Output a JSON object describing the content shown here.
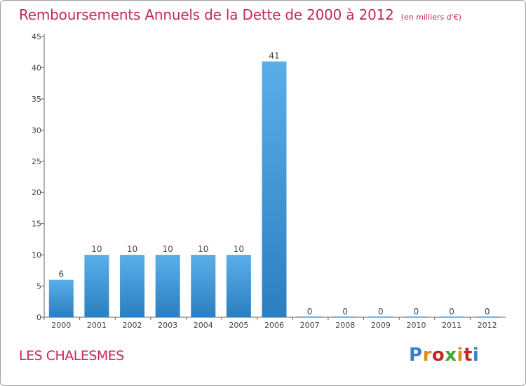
{
  "header": {
    "title": "Remboursements Annuels de la Dette de 2000 à 2012",
    "unit": "(en milliers d'€)"
  },
  "footer": {
    "commune": "LES CHALESMES",
    "brand": "Proxiti",
    "brand_colors": [
      "#3a7fc8",
      "#e08a1a",
      "#c42828",
      "#3aa83a",
      "#e08a1a",
      "#c42828",
      "#3a7fc8"
    ]
  },
  "chart_data": {
    "type": "bar",
    "title": "Remboursements Annuels de la Dette de 2000 à 2012",
    "subtitle": "(en milliers d'€)",
    "xlabel": "",
    "ylabel": "",
    "categories": [
      "2000",
      "2001",
      "2002",
      "2003",
      "2004",
      "2005",
      "2006",
      "2007",
      "2008",
      "2009",
      "2010",
      "2011",
      "2012"
    ],
    "values": [
      6,
      10,
      10,
      10,
      10,
      10,
      41,
      0,
      0,
      0,
      0,
      0,
      0
    ],
    "value_labels": [
      "6",
      "10",
      "10",
      "10",
      "10",
      "10",
      "41",
      "0",
      "0",
      "0",
      "0",
      "0",
      "0"
    ],
    "ylim": [
      0,
      45
    ],
    "yticks": [
      0,
      5,
      10,
      15,
      20,
      25,
      30,
      35,
      40,
      45
    ],
    "grid": false,
    "bar_color": "#3d95d8"
  }
}
